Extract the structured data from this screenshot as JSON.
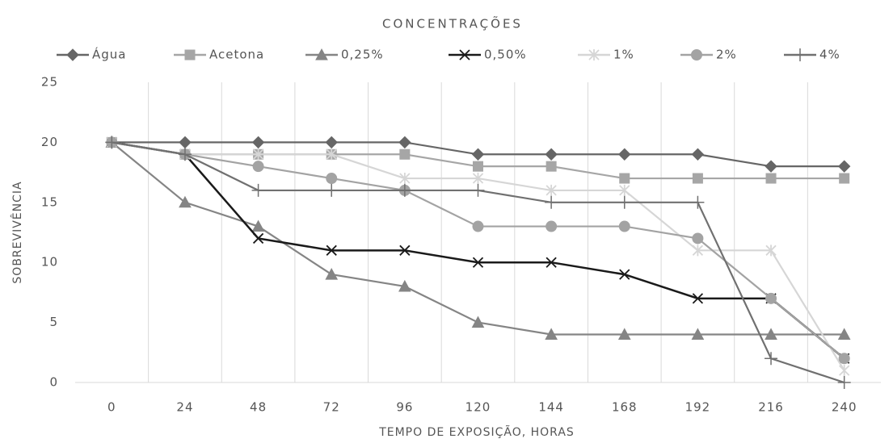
{
  "chart_data": {
    "type": "line",
    "legend_title": "CONCENTRAÇÕES",
    "x_label": "TEMPO DE EXPOSIÇÃO, HORAS",
    "y_label": "SOBREVIVÊNCIA",
    "categories": [
      "0",
      "24",
      "48",
      "72",
      "96",
      "120",
      "144",
      "168",
      "192",
      "216",
      "240"
    ],
    "ylim": [
      0,
      25
    ],
    "yticks": [
      0,
      5,
      10,
      15,
      20,
      25
    ],
    "grid": "x",
    "legend": "top",
    "series": [
      {
        "name": "Água",
        "color": "#666666",
        "marker": "diamond",
        "values": [
          20,
          20,
          20,
          20,
          20,
          19,
          19,
          19,
          19,
          18,
          18
        ]
      },
      {
        "name": "Acetona",
        "color": "#a6a6a6",
        "marker": "square",
        "values": [
          20,
          19,
          19,
          19,
          19,
          18,
          18,
          17,
          17,
          17,
          17
        ]
      },
      {
        "name": "0,25%",
        "color": "#858585",
        "marker": "triangle",
        "values": [
          20,
          15,
          13,
          9,
          8,
          5,
          4,
          4,
          4,
          4,
          4
        ]
      },
      {
        "name": "0,50%",
        "color": "#1a1a1a",
        "marker": "x",
        "values": [
          20,
          19,
          12,
          11,
          11,
          10,
          10,
          9,
          7,
          7,
          2
        ]
      },
      {
        "name": "1%",
        "color": "#d6d6d6",
        "marker": "star",
        "values": [
          20,
          19,
          19,
          19,
          17,
          17,
          16,
          16,
          11,
          11,
          1
        ]
      },
      {
        "name": "2%",
        "color": "#a3a3a3",
        "marker": "circle",
        "values": [
          20,
          19,
          18,
          17,
          16,
          13,
          13,
          13,
          12,
          7,
          2
        ]
      },
      {
        "name": "4%",
        "color": "#707070",
        "marker": "plus",
        "values": [
          20,
          19,
          16,
          16,
          16,
          16,
          15,
          15,
          15,
          2,
          0
        ]
      }
    ]
  }
}
